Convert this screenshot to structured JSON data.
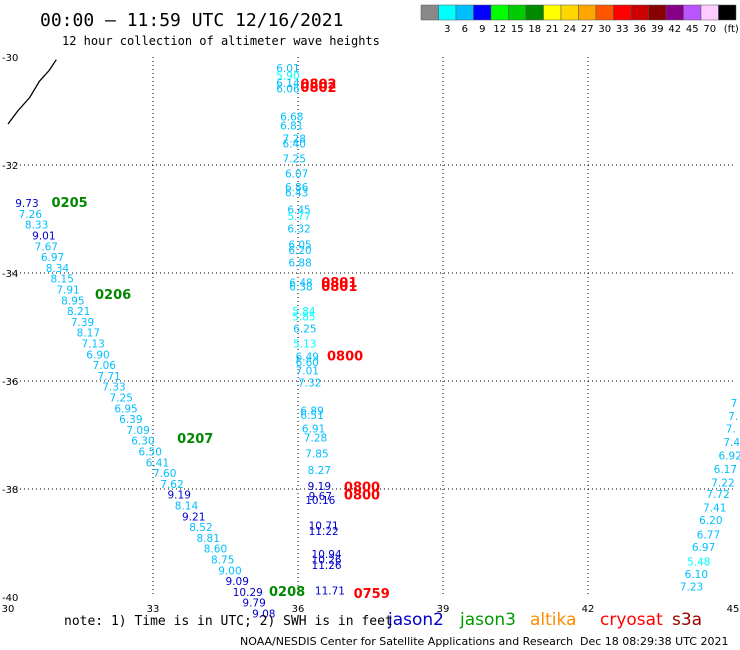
{
  "header": {
    "title": "00:00 – 11:59 UTC 12/16/2021",
    "subtitle": "12 hour collection of altimeter wave heights"
  },
  "footer": {
    "note": "note: 1) Time is in UTC; 2) SWH is in feet",
    "credit": "NOAA/NESDIS Center for Satellite Applications and Research",
    "timestamp": "Dec 18 08:29:38 UTC 2021"
  },
  "colorbar": {
    "unit": "(ft)",
    "labels": [
      "3",
      "6",
      "9",
      "12",
      "15",
      "18",
      "21",
      "24",
      "27",
      "30",
      "33",
      "36",
      "39",
      "42",
      "45",
      "70"
    ],
    "colors": [
      "#888888",
      "#00ffff",
      "#00bfff",
      "#0000ff",
      "#00ff00",
      "#00cc00",
      "#008800",
      "#ffff00",
      "#ffd700",
      "#ffa500",
      "#ff5500",
      "#ff0000",
      "#cc0000",
      "#880000",
      "#880088",
      "#bb55ff",
      "#ffccff",
      "#000000"
    ]
  },
  "legend": [
    {
      "name": "jason2",
      "color": "#0000cc"
    },
    {
      "name": "jason3",
      "color": "#009900"
    },
    {
      "name": "altika",
      "color": "#ff8c00"
    },
    {
      "name": "cryosat",
      "color": "#ff0000"
    },
    {
      "name": "s3a",
      "color": "#990000"
    }
  ],
  "chart_data": {
    "type": "scatter",
    "xlabel": "",
    "ylabel": "",
    "xlim": [
      30,
      45
    ],
    "ylim": [
      -40,
      -30
    ],
    "xticks": [
      "30",
      "33",
      "36",
      "39",
      "42",
      "45"
    ],
    "yticks": [
      "-30",
      "-32",
      "-34",
      "-36",
      "-38",
      "-40"
    ],
    "grid": true,
    "coast": [
      [
        30.0,
        -31.24
      ],
      [
        30.2,
        -31.0
      ],
      [
        30.45,
        -30.75
      ],
      [
        30.65,
        -30.45
      ],
      [
        30.85,
        -30.25
      ],
      [
        31.0,
        -30.05
      ]
    ],
    "track_labels": [
      {
        "text": "0205",
        "x": 30.9,
        "y": -32.78,
        "color": "#008800"
      },
      {
        "text": "0206",
        "x": 31.8,
        "y": -34.48,
        "color": "#008800"
      },
      {
        "text": "0207",
        "x": 33.5,
        "y": -37.15,
        "color": "#008800"
      },
      {
        "text": "0208",
        "x": 35.4,
        "y": -39.98,
        "color": "#008800"
      },
      {
        "text": "0802",
        "x": 36.05,
        "y": -30.58,
        "color": "#ff0000"
      },
      {
        "text": "0802",
        "x": 36.05,
        "y": -30.65,
        "color": "#ff0000"
      },
      {
        "text": "0801",
        "x": 36.48,
        "y": -34.26,
        "color": "#ff0000"
      },
      {
        "text": "0801",
        "x": 36.48,
        "y": -34.33,
        "color": "#ff0000"
      },
      {
        "text": "0800",
        "x": 36.6,
        "y": -35.62,
        "color": "#ff0000"
      },
      {
        "text": "0800",
        "x": 36.95,
        "y": -38.05,
        "color": "#ff0000"
      },
      {
        "text": "0800",
        "x": 36.95,
        "y": -38.19,
        "color": "#ff0000"
      },
      {
        "text": "0759",
        "x": 37.15,
        "y": -40.02,
        "color": "#ff0000"
      }
    ],
    "observations": [
      {
        "v": "9.73",
        "x": 30.15,
        "y": -32.78,
        "c": "#0000cc"
      },
      {
        "v": "7.26",
        "x": 30.22,
        "y": -32.98,
        "c": "#00bfff"
      },
      {
        "v": "8.33",
        "x": 30.35,
        "y": -33.18,
        "c": "#00bfff"
      },
      {
        "v": "9.01",
        "x": 30.5,
        "y": -33.38,
        "c": "#0000cc"
      },
      {
        "v": "7.67",
        "x": 30.55,
        "y": -33.58,
        "c": "#00bfff"
      },
      {
        "v": "6.97",
        "x": 30.68,
        "y": -33.78,
        "c": "#00bfff"
      },
      {
        "v": "8.34",
        "x": 30.78,
        "y": -33.98,
        "c": "#00bfff"
      },
      {
        "v": "8.15",
        "x": 30.88,
        "y": -34.18,
        "c": "#00bfff"
      },
      {
        "v": "7.91",
        "x": 31.0,
        "y": -34.38,
        "c": "#00bfff"
      },
      {
        "v": "8.95",
        "x": 31.1,
        "y": -34.58,
        "c": "#00bfff"
      },
      {
        "v": "8.21",
        "x": 31.22,
        "y": -34.78,
        "c": "#00bfff"
      },
      {
        "v": "7.39",
        "x": 31.3,
        "y": -34.98,
        "c": "#00bfff"
      },
      {
        "v": "8.17",
        "x": 31.42,
        "y": -35.18,
        "c": "#00bfff"
      },
      {
        "v": "7.13",
        "x": 31.52,
        "y": -35.38,
        "c": "#00bfff"
      },
      {
        "v": "6.90",
        "x": 31.62,
        "y": -35.58,
        "c": "#00bfff"
      },
      {
        "v": "7.06",
        "x": 31.75,
        "y": -35.78,
        "c": "#00bfff"
      },
      {
        "v": "7.71",
        "x": 31.85,
        "y": -35.98,
        "c": "#00bfff"
      },
      {
        "v": "7.33",
        "x": 31.95,
        "y": -36.18,
        "c": "#00bfff"
      },
      {
        "v": "7.25",
        "x": 32.1,
        "y": -36.38,
        "c": "#00bfff"
      },
      {
        "v": "6.95",
        "x": 32.2,
        "y": -36.58,
        "c": "#00bfff"
      },
      {
        "v": "6.39",
        "x": 32.3,
        "y": -36.78,
        "c": "#00bfff"
      },
      {
        "v": "7.09",
        "x": 32.45,
        "y": -36.98,
        "c": "#00bfff"
      },
      {
        "v": "6.30",
        "x": 32.55,
        "y": -37.18,
        "c": "#00bfff"
      },
      {
        "v": "6.50",
        "x": 32.7,
        "y": -37.38,
        "c": "#00bfff"
      },
      {
        "v": "6.41",
        "x": 32.85,
        "y": -37.58,
        "c": "#00bfff"
      },
      {
        "v": "7.60",
        "x": 33.0,
        "y": -37.78,
        "c": "#00bfff"
      },
      {
        "v": "7.62",
        "x": 33.15,
        "y": -37.98,
        "c": "#00bfff"
      },
      {
        "v": "9.19",
        "x": 33.3,
        "y": -38.18,
        "c": "#0000cc"
      },
      {
        "v": "8.14",
        "x": 33.45,
        "y": -38.38,
        "c": "#00bfff"
      },
      {
        "v": "9.21",
        "x": 33.6,
        "y": -38.58,
        "c": "#0000cc"
      },
      {
        "v": "8.52",
        "x": 33.75,
        "y": -38.78,
        "c": "#00bfff"
      },
      {
        "v": "8.81",
        "x": 33.9,
        "y": -38.98,
        "c": "#00bfff"
      },
      {
        "v": "8.60",
        "x": 34.05,
        "y": -39.18,
        "c": "#00bfff"
      },
      {
        "v": "8.75",
        "x": 34.2,
        "y": -39.38,
        "c": "#00bfff"
      },
      {
        "v": "9.00",
        "x": 34.35,
        "y": -39.58,
        "c": "#00bfff"
      },
      {
        "v": "9.09",
        "x": 34.5,
        "y": -39.78,
        "c": "#0000cc"
      },
      {
        "v": "10.29",
        "x": 34.65,
        "y": -39.98,
        "c": "#0000cc"
      },
      {
        "v": "9.79",
        "x": 34.85,
        "y": -40.18,
        "c": "#0000cc"
      },
      {
        "v": "9.08",
        "x": 35.05,
        "y": -40.38,
        "c": "#0000cc"
      },
      {
        "v": "6.01",
        "x": 35.55,
        "y": -30.28,
        "c": "#00bfff"
      },
      {
        "v": "5.90",
        "x": 35.55,
        "y": -30.42,
        "c": "#00ffff"
      },
      {
        "v": "6.14",
        "x": 35.55,
        "y": -30.56,
        "c": "#00bfff"
      },
      {
        "v": "6.06",
        "x": 35.55,
        "y": -30.66,
        "c": "#00bfff"
      },
      {
        "v": "6.68",
        "x": 35.63,
        "y": -31.18,
        "c": "#00bfff"
      },
      {
        "v": "6.81",
        "x": 35.63,
        "y": -31.34,
        "c": "#00bfff"
      },
      {
        "v": "7.28",
        "x": 35.68,
        "y": -31.58,
        "c": "#00bfff"
      },
      {
        "v": "6.40",
        "x": 35.68,
        "y": -31.68,
        "c": "#00bfff"
      },
      {
        "v": "7.25",
        "x": 35.68,
        "y": -31.95,
        "c": "#00bfff"
      },
      {
        "v": "6.07",
        "x": 35.73,
        "y": -32.23,
        "c": "#00bfff"
      },
      {
        "v": "6.86",
        "x": 35.73,
        "y": -32.48,
        "c": "#00bfff"
      },
      {
        "v": "6.43",
        "x": 35.73,
        "y": -32.58,
        "c": "#00bfff"
      },
      {
        "v": "6.45",
        "x": 35.78,
        "y": -32.9,
        "c": "#00bfff"
      },
      {
        "v": "5.77",
        "x": 35.78,
        "y": -33.02,
        "c": "#00ffff"
      },
      {
        "v": "6.32",
        "x": 35.78,
        "y": -33.25,
        "c": "#00bfff"
      },
      {
        "v": "6.05",
        "x": 35.8,
        "y": -33.55,
        "c": "#00bfff"
      },
      {
        "v": "6.20",
        "x": 35.8,
        "y": -33.65,
        "c": "#00bfff"
      },
      {
        "v": "6.88",
        "x": 35.8,
        "y": -33.88,
        "c": "#00bfff"
      },
      {
        "v": "6.48",
        "x": 35.82,
        "y": -34.25,
        "c": "#00bfff"
      },
      {
        "v": "6.38",
        "x": 35.82,
        "y": -34.32,
        "c": "#00bfff"
      },
      {
        "v": "5.84",
        "x": 35.88,
        "y": -34.78,
        "c": "#00ffff"
      },
      {
        "v": "5.85",
        "x": 35.88,
        "y": -34.88,
        "c": "#00ffff"
      },
      {
        "v": "6.25",
        "x": 35.9,
        "y": -35.1,
        "c": "#00bfff"
      },
      {
        "v": "5.13",
        "x": 35.9,
        "y": -35.38,
        "c": "#00ffff"
      },
      {
        "v": "6.49",
        "x": 35.95,
        "y": -35.62,
        "c": "#00bfff"
      },
      {
        "v": "6.60",
        "x": 35.95,
        "y": -35.72,
        "c": "#00bfff"
      },
      {
        "v": "7.01",
        "x": 35.95,
        "y": -35.88,
        "c": "#00bfff"
      },
      {
        "v": "7.32",
        "x": 36.0,
        "y": -36.1,
        "c": "#00bfff"
      },
      {
        "v": "6.89",
        "x": 36.05,
        "y": -36.62,
        "c": "#00bfff"
      },
      {
        "v": "6.51",
        "x": 36.05,
        "y": -36.7,
        "c": "#00bfff"
      },
      {
        "v": "6.91",
        "x": 36.08,
        "y": -36.95,
        "c": "#00bfff"
      },
      {
        "v": "7.28",
        "x": 36.12,
        "y": -37.12,
        "c": "#00bfff"
      },
      {
        "v": "7.85",
        "x": 36.15,
        "y": -37.42,
        "c": "#00bfff"
      },
      {
        "v": "8.27",
        "x": 36.2,
        "y": -37.72,
        "c": "#00bfff"
      },
      {
        "v": "9.19",
        "x": 36.2,
        "y": -38.02,
        "c": "#0000cc"
      },
      {
        "v": "9.67",
        "x": 36.22,
        "y": -38.2,
        "c": "#0000cc"
      },
      {
        "v": "10.16",
        "x": 36.15,
        "y": -38.28,
        "c": "#0000cc"
      },
      {
        "v": "10.71",
        "x": 36.22,
        "y": -38.75,
        "c": "#0000cc"
      },
      {
        "v": "11.22",
        "x": 36.22,
        "y": -38.85,
        "c": "#0000cc"
      },
      {
        "v": "10.94",
        "x": 36.28,
        "y": -39.28,
        "c": "#0000cc"
      },
      {
        "v": "10.26",
        "x": 36.28,
        "y": -39.38,
        "c": "#0000cc"
      },
      {
        "v": "11.26",
        "x": 36.28,
        "y": -39.48,
        "c": "#0000cc"
      },
      {
        "v": "11.71",
        "x": 36.35,
        "y": -39.95,
        "c": "#0000cc"
      },
      {
        "v": "7.23",
        "x": 43.9,
        "y": -39.88,
        "c": "#00bfff"
      },
      {
        "v": "6.10",
        "x": 44.0,
        "y": -39.65,
        "c": "#00bfff"
      },
      {
        "v": "5.48",
        "x": 44.05,
        "y": -39.42,
        "c": "#00ffff"
      },
      {
        "v": "6.97",
        "x": 44.15,
        "y": -39.15,
        "c": "#00bfff"
      },
      {
        "v": "6.77",
        "x": 44.25,
        "y": -38.92,
        "c": "#00bfff"
      },
      {
        "v": "6.20",
        "x": 44.3,
        "y": -38.65,
        "c": "#00bfff"
      },
      {
        "v": "7.41",
        "x": 44.38,
        "y": -38.42,
        "c": "#00bfff"
      },
      {
        "v": "7.72",
        "x": 44.45,
        "y": -38.17,
        "c": "#00bfff"
      },
      {
        "v": "7.22",
        "x": 44.55,
        "y": -37.95,
        "c": "#00bfff"
      },
      {
        "v": "6.17",
        "x": 44.6,
        "y": -37.7,
        "c": "#00bfff"
      },
      {
        "v": "6.92",
        "x": 44.7,
        "y": -37.45,
        "c": "#00bfff"
      },
      {
        "v": "7.4",
        "x": 44.8,
        "y": -37.2,
        "c": "#00bfff"
      },
      {
        "v": "7.",
        "x": 44.85,
        "y": -36.95,
        "c": "#00bfff"
      },
      {
        "v": "7.",
        "x": 44.9,
        "y": -36.72,
        "c": "#00bfff"
      },
      {
        "v": "7",
        "x": 44.95,
        "y": -36.48,
        "c": "#00bfff"
      },
      {
        "v": "",
        "x": 45.0,
        "y": -36.2,
        "c": "#00bfff"
      }
    ]
  }
}
